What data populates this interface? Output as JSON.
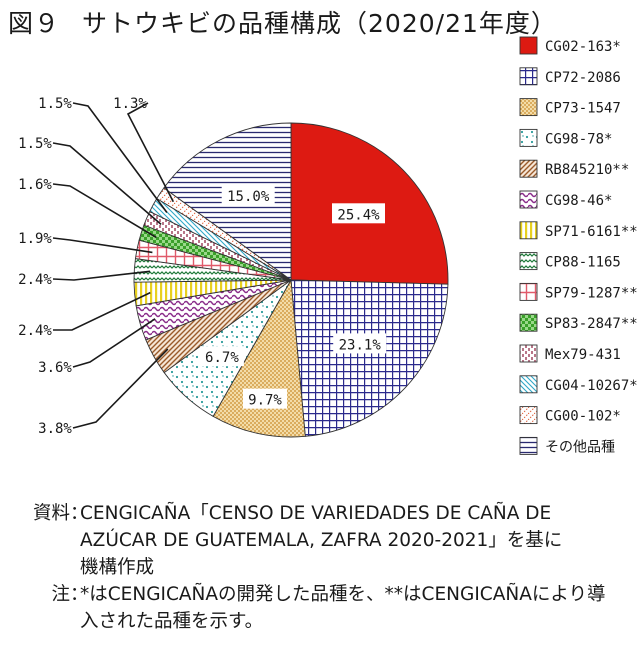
{
  "title": {
    "fig": "図９",
    "text": "サトウキビの品種構成（2020/21年度）"
  },
  "chart_data": {
    "type": "pie",
    "title": "サトウキビの品種構成（2020/21年度）",
    "unit": "%",
    "slices": [
      {
        "name": "CG02-163*",
        "value": 25.4,
        "label": "25.4%",
        "fill": "red",
        "color": "#dd1a12"
      },
      {
        "name": "CP72-2086",
        "value": 23.1,
        "label": "23.1%",
        "fill": "grid",
        "color": "#2b2a8c"
      },
      {
        "name": "CP73-1547",
        "value": 9.7,
        "label": "9.7%",
        "fill": "dots",
        "color": "#d9a040"
      },
      {
        "name": "CG98-78*",
        "value": 6.7,
        "label": "6.7%",
        "fill": "teal-dots",
        "color": "#2a9b9b"
      },
      {
        "name": "RB845210**",
        "value": 3.8,
        "label": "3.8%",
        "fill": "brown-diag",
        "color": "#9a5a2a"
      },
      {
        "name": "CG98-46*",
        "value": 3.6,
        "label": "3.6%",
        "fill": "purple-wave",
        "color": "#8a2d8a"
      },
      {
        "name": "SP71-6161**",
        "value": 2.4,
        "label": "2.4%",
        "fill": "yellow-vert",
        "color": "#e8d020"
      },
      {
        "name": "CP88-1165",
        "value": 2.4,
        "label": "2.4%",
        "fill": "green-zig",
        "color": "#1f7a3a"
      },
      {
        "name": "SP79-1287**",
        "value": 1.9,
        "label": "1.9%",
        "fill": "pink-cross",
        "color": "#e05a6a"
      },
      {
        "name": "SP83-2847**",
        "value": 1.6,
        "label": "1.6%",
        "fill": "green-check",
        "color": "#3aa02a"
      },
      {
        "name": "Mex79-431",
        "value": 1.5,
        "label": "1.5%",
        "fill": "maroon-dash",
        "color": "#8a1a3a"
      },
      {
        "name": "CG04-10267*",
        "value": 1.5,
        "label": "1.5%",
        "fill": "cyan-diag",
        "color": "#30a8c8"
      },
      {
        "name": "CG00-102*",
        "value": 1.3,
        "label": "1.3%",
        "fill": "orange-diag",
        "color": "#e0603a"
      },
      {
        "name": "その他品種",
        "value": 15.0,
        "label": "15.0%",
        "fill": "navy-horiz",
        "color": "#2a2a70"
      }
    ]
  },
  "notes": {
    "source_label": "資料",
    "source_text_1": "CENGICAÑA「CENSO DE VARIEDADES DE CAÑA DE",
    "source_text_2": "AZÚCAR DE GUATEMALA, ZAFRA 2020-2021」を基に",
    "source_text_3": "機構作成",
    "note_label": "注",
    "note_text_1": "*はCENGICAÑAの開発した品種を、**はCENGICAÑAにより導",
    "note_text_2": "入された品種を示す。",
    "colon": "："
  }
}
